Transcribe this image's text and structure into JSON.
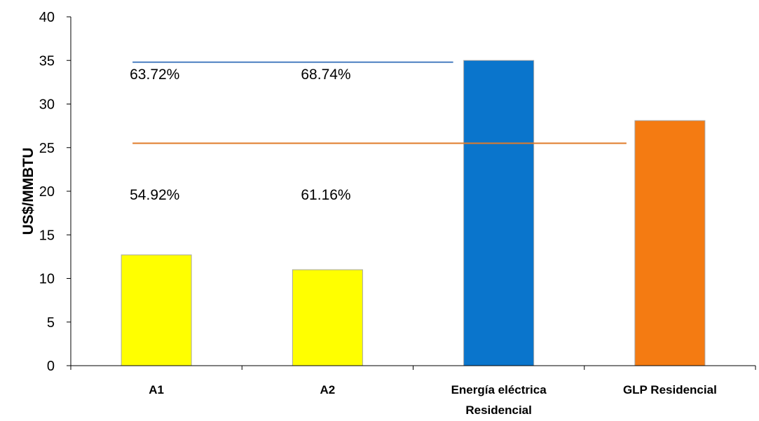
{
  "chart_data": {
    "type": "bar",
    "ylabel": "US$/MMBTU",
    "ylim": [
      0,
      40
    ],
    "yticks": [
      0,
      5,
      10,
      15,
      20,
      25,
      30,
      35,
      40
    ],
    "grid": false,
    "categories": [
      {
        "lines": [
          "A1"
        ]
      },
      {
        "lines": [
          "A2"
        ]
      },
      {
        "lines": [
          "Energía eléctrica",
          "Residencial"
        ]
      },
      {
        "lines": [
          "GLP Residencial"
        ]
      }
    ],
    "values": [
      12.7,
      11.0,
      35.0,
      28.1
    ],
    "colors": [
      "#ffff00",
      "#ffff00",
      "#0a75cc",
      "#f47b12"
    ],
    "reference_lines": [
      {
        "y": 34.8,
        "from_category": 0,
        "to_category": 2,
        "color": "#4a7fc1"
      },
      {
        "y": 25.5,
        "from_category": 0,
        "to_category": 3,
        "color": "#e07b2a"
      }
    ],
    "annotations": [
      {
        "text": "63.72%",
        "category": 0,
        "y": 33.4
      },
      {
        "text": "68.74%",
        "category": 1,
        "y": 33.4
      },
      {
        "text": "54.92%",
        "category": 0,
        "y": 19.6
      },
      {
        "text": "61.16%",
        "category": 1,
        "y": 19.6
      }
    ]
  }
}
